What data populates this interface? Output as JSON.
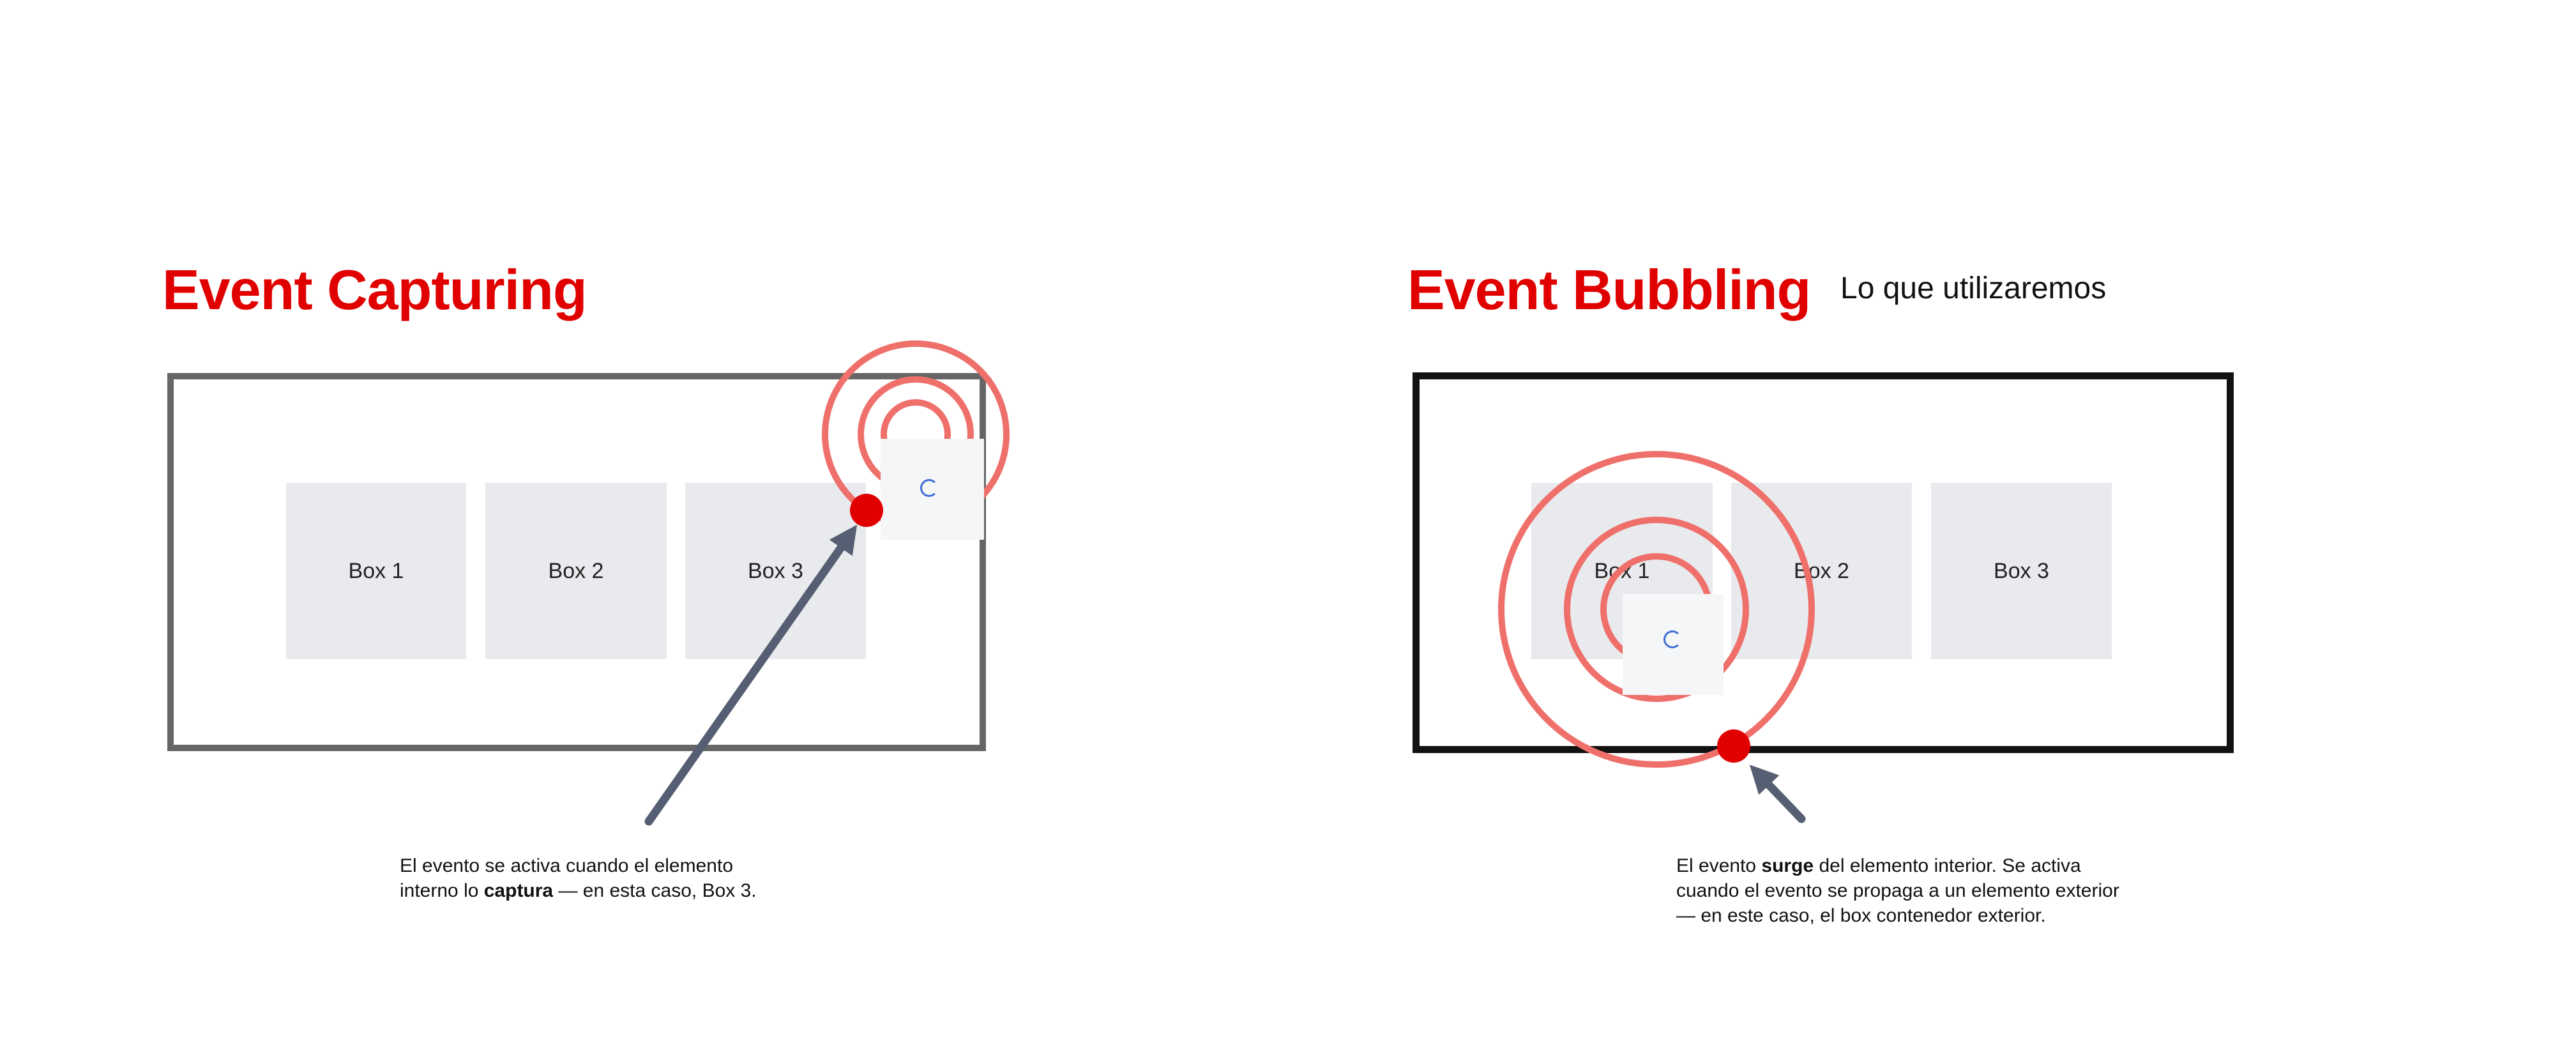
{
  "colors": {
    "accent": "#e00000",
    "ring": "#ef6f6a",
    "arrow": "#555e72",
    "box_fill": "#e9eaee",
    "capture_border": "#666666",
    "bubble_border": "#111111",
    "spinner": "#3b6fd6"
  },
  "capturing": {
    "title": "Event Capturing",
    "boxes": [
      "Box 1",
      "Box 2",
      "Box 3"
    ],
    "caption": {
      "line1": "El evento se activa cuando el elemento",
      "line2_pre": "interno lo ",
      "line2_bold": "captura",
      "line2_post": " — en esta caso, Box 3."
    }
  },
  "bubbling": {
    "title": "Event Bubbling",
    "subtitle": "Lo que utilizaremos",
    "boxes": [
      "Box 1",
      "Box 2",
      "Box 3"
    ],
    "caption": {
      "line1_pre": "El evento ",
      "line1_bold": "surge",
      "line1_post": " del elemento interior. Se activa",
      "line2": "cuando el evento se propaga a un elemento exterior",
      "line3": "— en este caso, el box contenedor exterior."
    }
  }
}
